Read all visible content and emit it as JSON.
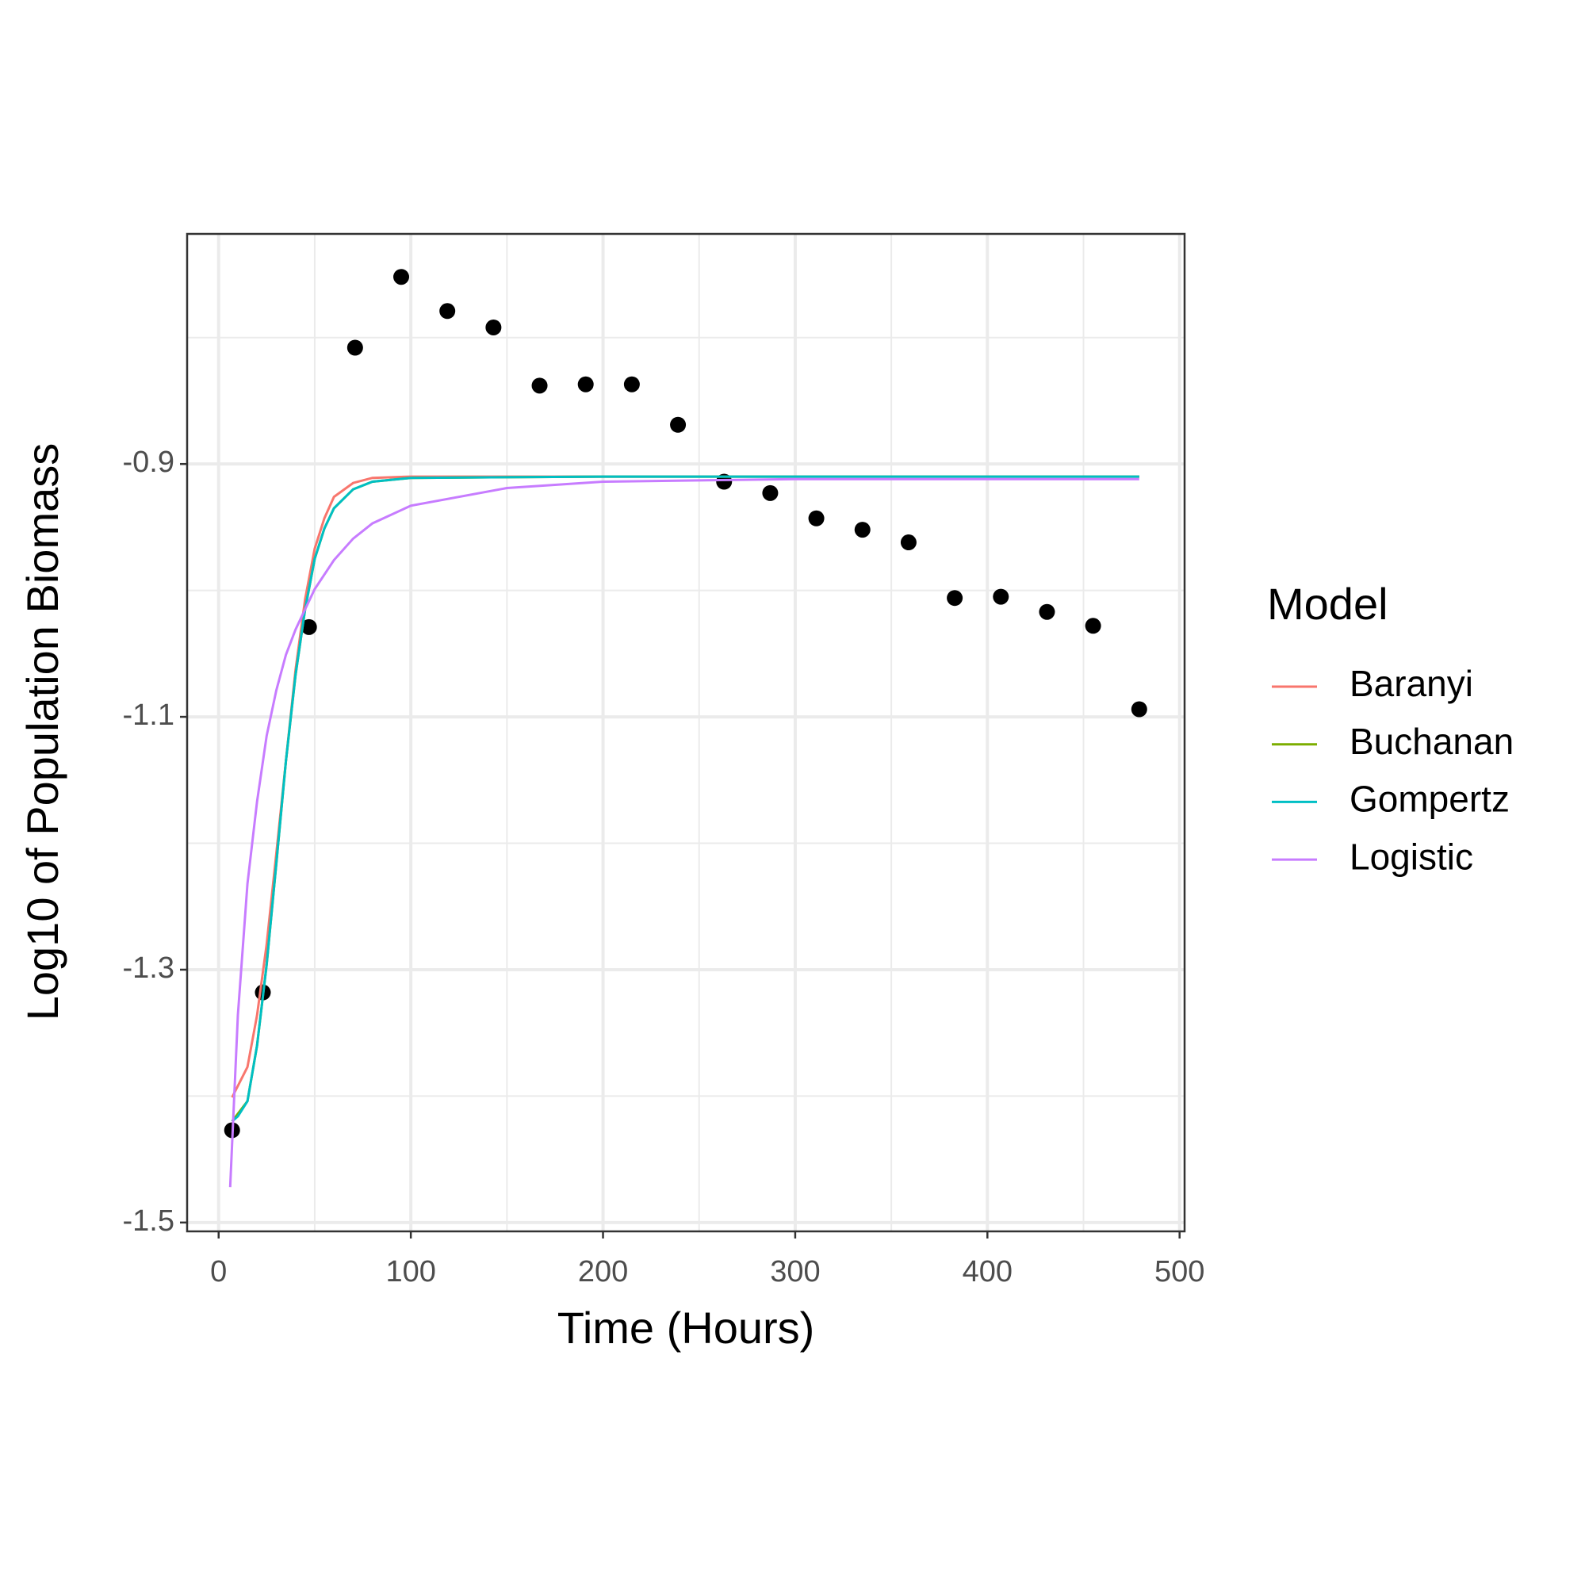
{
  "chart_data": {
    "type": "line",
    "x_label": "Time (Hours)",
    "y_label": "Log10 of Population Biomass",
    "xlim": [
      -16.4,
      502.6
    ],
    "ylim": [
      -1.507,
      -0.718
    ],
    "xticks": [
      0,
      100,
      200,
      300,
      400,
      500
    ],
    "yticks": [
      -1.5,
      -1.3,
      -1.1,
      -0.9
    ],
    "grid": true,
    "legend_title": "Model",
    "legend_position": "right",
    "series": [
      {
        "type": "scatter",
        "color": "#000000",
        "x": [
          7,
          23,
          47,
          71,
          95,
          119,
          143,
          167,
          191,
          215,
          239,
          263,
          287,
          311,
          335,
          359,
          383,
          407,
          431,
          455,
          479
        ],
        "values": [
          -1.427,
          -1.318,
          -1.029,
          -0.808,
          -0.752,
          -0.779,
          -0.792,
          -0.838,
          -0.837,
          -0.837,
          -0.869,
          -0.914,
          -0.923,
          -0.943,
          -0.952,
          -0.962,
          -1.006,
          -1.005,
          -1.017,
          -1.028,
          -1.094
        ]
      },
      {
        "type": "line",
        "name": "Baranyi",
        "color": "#F8766D",
        "x": [
          7,
          15,
          20,
          25,
          30,
          35,
          40,
          45,
          50,
          55,
          60,
          70,
          80,
          100,
          200,
          300,
          400,
          479
        ],
        "values": [
          -1.401,
          -1.377,
          -1.336,
          -1.28,
          -1.208,
          -1.135,
          -1.063,
          -1.007,
          -0.967,
          -0.943,
          -0.926,
          -0.915,
          -0.911,
          -0.91,
          -0.91,
          -0.91,
          -0.91,
          -0.91
        ]
      },
      {
        "type": "line",
        "name": "Buchanan",
        "color": "#7CAE00",
        "x": [
          7,
          15,
          20,
          25,
          30,
          35,
          40,
          45,
          50,
          55,
          60,
          70,
          80,
          100,
          200,
          300,
          400,
          479
        ],
        "values": [
          -1.42,
          -1.404,
          -1.36,
          -1.296,
          -1.216,
          -1.135,
          -1.067,
          -1.015,
          -0.975,
          -0.951,
          -0.935,
          -0.92,
          -0.914,
          -0.911,
          -0.91,
          -0.91,
          -0.91,
          -0.91
        ]
      },
      {
        "type": "line",
        "name": "Gompertz",
        "color": "#00BFC4",
        "x": [
          7,
          10,
          15,
          20,
          25,
          30,
          35,
          40,
          45,
          50,
          55,
          60,
          70,
          80,
          100,
          200,
          300,
          400,
          479
        ],
        "values": [
          -1.42,
          -1.416,
          -1.404,
          -1.36,
          -1.296,
          -1.216,
          -1.135,
          -1.067,
          -1.015,
          -0.975,
          -0.951,
          -0.935,
          -0.92,
          -0.914,
          -0.911,
          -0.91,
          -0.91,
          -0.91,
          -0.91
        ]
      },
      {
        "type": "line",
        "name": "Logistic",
        "color": "#C77CFF",
        "x": [
          6,
          10,
          15,
          20,
          25,
          30,
          35,
          40,
          45,
          50,
          60,
          70,
          80,
          100,
          150,
          200,
          300,
          400,
          479
        ],
        "values": [
          -1.472,
          -1.336,
          -1.232,
          -1.167,
          -1.115,
          -1.079,
          -1.051,
          -1.031,
          -1.015,
          -0.999,
          -0.976,
          -0.959,
          -0.947,
          -0.933,
          -0.919,
          -0.914,
          -0.912,
          -0.912,
          -0.912
        ]
      }
    ]
  }
}
